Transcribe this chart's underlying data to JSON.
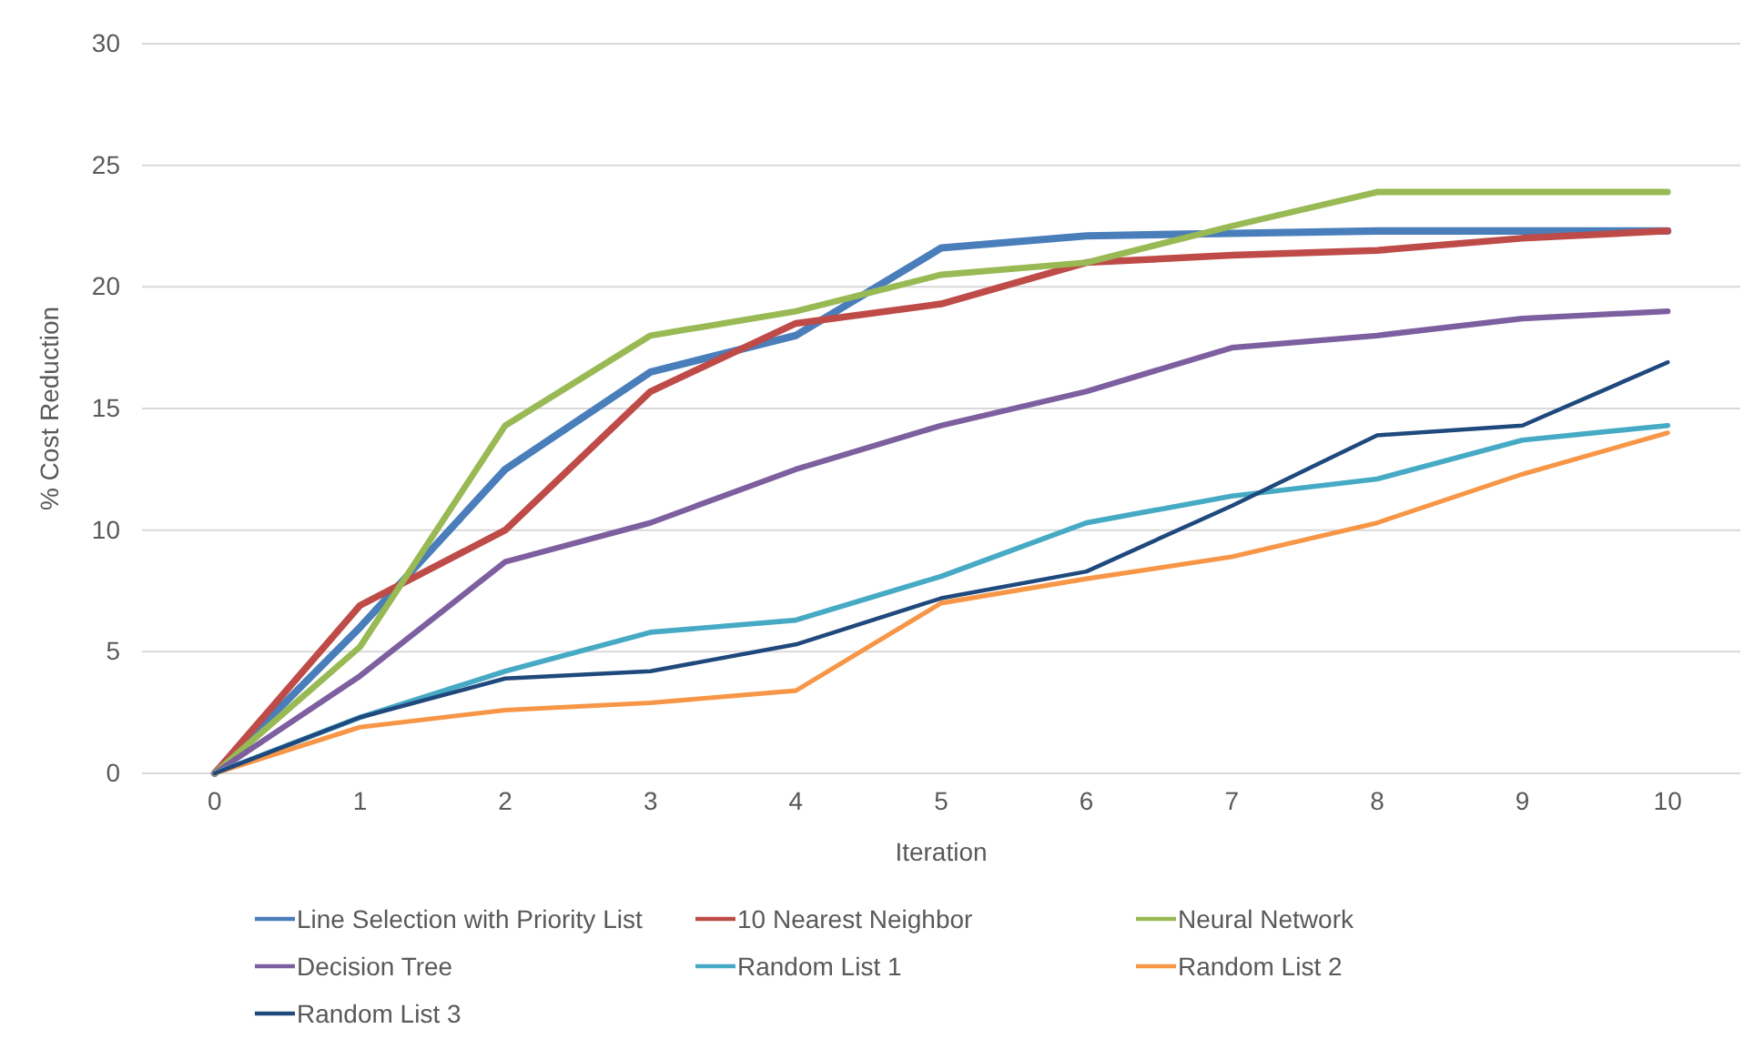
{
  "chart_data": {
    "type": "line",
    "xlabel": "Iteration",
    "ylabel": "% Cost Reduction",
    "categories": [
      "0",
      "1",
      "2",
      "3",
      "4",
      "5",
      "6",
      "7",
      "8",
      "9",
      "10"
    ],
    "ylim": [
      0,
      30
    ],
    "yticks": [
      0,
      5,
      10,
      15,
      20,
      25,
      30
    ],
    "grid": "y",
    "legend": "bottom",
    "marker": "none",
    "line_style": "solid",
    "series": [
      {
        "name": "Line Selection with Priority List",
        "color": "#4a7ebb",
        "values": [
          0,
          6.0,
          12.5,
          16.5,
          18,
          21.6,
          22.1,
          22.2,
          22.3,
          22.3,
          22.3
        ]
      },
      {
        "name": "10 Nearest Neighbor",
        "color": "#be4b48",
        "values": [
          0,
          6.9,
          10,
          15.7,
          18.5,
          19.3,
          21,
          21.3,
          21.5,
          22,
          22.3
        ]
      },
      {
        "name": "Neural Network",
        "color": "#98b954",
        "values": [
          0,
          5.2,
          14.3,
          18,
          19,
          20.5,
          21,
          22.5,
          23.9,
          23.9,
          23.9
        ]
      },
      {
        "name": "Decision Tree",
        "color": "#7d5fa0",
        "values": [
          0,
          4,
          8.7,
          10.3,
          12.5,
          14.3,
          15.7,
          17.5,
          18,
          18.7,
          19
        ]
      },
      {
        "name": "Random List 1",
        "color": "#46aac5",
        "values": [
          0,
          2.3,
          4.2,
          5.8,
          6.3,
          8.1,
          10.3,
          11.4,
          12.1,
          13.7,
          14.3
        ]
      },
      {
        "name": "Random List 2",
        "color": "#f79646",
        "values": [
          0,
          1.9,
          2.6,
          2.9,
          3.4,
          7,
          8,
          8.9,
          10.3,
          12.3,
          14
        ]
      },
      {
        "name": "Random List 3",
        "color": "#1f497d",
        "values": [
          0,
          2.3,
          3.9,
          4.2,
          5.3,
          7.2,
          8.3,
          11,
          13.9,
          14.3,
          16.9
        ]
      }
    ]
  }
}
